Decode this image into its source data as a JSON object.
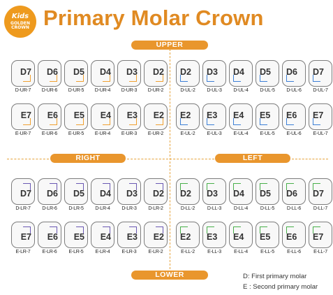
{
  "logo": {
    "line1": "Kids",
    "line2": "GOLDEN",
    "line3": "CROWN"
  },
  "title": "Primary Molar Crown",
  "sections": {
    "upper": "UPPER",
    "lower": "LOWER",
    "right": "RIGHT",
    "left": "LEFT"
  },
  "colors": {
    "ur": "#f0a030",
    "ul": "#3c7fd6",
    "lr": "#6a58b3",
    "ll": "#48b04a",
    "accent": "#e9962d"
  },
  "quadrants": {
    "ur_d": {
      "labels": [
        "D7",
        "D6",
        "D5",
        "D4",
        "D3",
        "D2"
      ],
      "codes": [
        "D-UR-7",
        "D-UR-6",
        "D-UR-5",
        "D-UR-4",
        "D-UR-3",
        "D-UR-2"
      ]
    },
    "ur_e": {
      "labels": [
        "E7",
        "E6",
        "E5",
        "E4",
        "E3",
        "E2"
      ],
      "codes": [
        "E-UR-7",
        "E-UR-6",
        "E-UR-5",
        "E-UR-4",
        "E-UR-3",
        "E-UR-2"
      ]
    },
    "ul_d": {
      "labels": [
        "D2",
        "D3",
        "D4",
        "D5",
        "D6",
        "D7"
      ],
      "codes": [
        "D-UL-2",
        "D-UL-3",
        "D-UL-4",
        "D-UL-5",
        "D-UL-6",
        "D-UL-7"
      ]
    },
    "ul_e": {
      "labels": [
        "E2",
        "E3",
        "E4",
        "E5",
        "E6",
        "E7"
      ],
      "codes": [
        "E-UL-2",
        "E-UL-3",
        "E-UL-4",
        "E-UL-5",
        "E-UL-6",
        "E-UL-7"
      ]
    },
    "lr_d": {
      "labels": [
        "D7",
        "D6",
        "D5",
        "D4",
        "D3",
        "D2"
      ],
      "codes": [
        "D-LR-7",
        "D-LR-6",
        "D-LR-5",
        "D-LR-4",
        "D-LR-3",
        "D-LR-2"
      ]
    },
    "lr_e": {
      "labels": [
        "E7",
        "E6",
        "E5",
        "E4",
        "E3",
        "E2"
      ],
      "codes": [
        "E-LR-7",
        "E-LR-6",
        "E-LR-5",
        "E-LR-4",
        "E-LR-3",
        "E-LR-2"
      ]
    },
    "ll_d": {
      "labels": [
        "D2",
        "D3",
        "D4",
        "D5",
        "D6",
        "D7"
      ],
      "codes": [
        "D-LL-2",
        "D-LL-3",
        "D-LL-4",
        "D-LL-5",
        "D-LL-6",
        "D-LL-7"
      ]
    },
    "ll_e": {
      "labels": [
        "E2",
        "E3",
        "E4",
        "E5",
        "E6",
        "E7"
      ],
      "codes": [
        "E-LL-2",
        "E-LL-3",
        "E-LL-4",
        "E-LL-5",
        "E-LL-6",
        "E-LL-7"
      ]
    }
  },
  "legend": {
    "d": "D: First primary molar",
    "e": "E : Second primary molar"
  }
}
